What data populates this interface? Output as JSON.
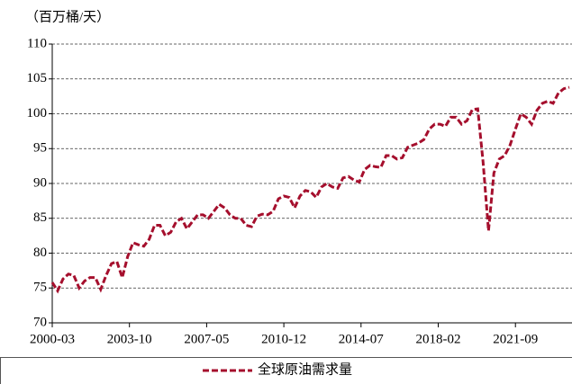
{
  "chart_data": {
    "type": "line",
    "y_label": "（百万桶/天）",
    "x": [
      "2000-03",
      "2000-06",
      "2000-09",
      "2000-12",
      "2001-03",
      "2001-06",
      "2001-09",
      "2001-12",
      "2002-03",
      "2002-06",
      "2002-09",
      "2002-12",
      "2003-03",
      "2003-06",
      "2003-09",
      "2003-12",
      "2004-03",
      "2004-06",
      "2004-09",
      "2004-12",
      "2005-03",
      "2005-06",
      "2005-09",
      "2005-12",
      "2006-03",
      "2006-06",
      "2006-09",
      "2006-12",
      "2007-03",
      "2007-06",
      "2007-09",
      "2007-12",
      "2008-03",
      "2008-06",
      "2008-09",
      "2008-12",
      "2009-03",
      "2009-06",
      "2009-09",
      "2009-12",
      "2010-03",
      "2010-06",
      "2010-09",
      "2010-12",
      "2011-03",
      "2011-06",
      "2011-09",
      "2011-12",
      "2012-03",
      "2012-06",
      "2012-09",
      "2012-12",
      "2013-03",
      "2013-06",
      "2013-09",
      "2013-12",
      "2014-03",
      "2014-06",
      "2014-09",
      "2014-12",
      "2015-03",
      "2015-06",
      "2015-09",
      "2015-12",
      "2016-03",
      "2016-06",
      "2016-09",
      "2016-12",
      "2017-03",
      "2017-06",
      "2017-09",
      "2017-12",
      "2018-03",
      "2018-06",
      "2018-09",
      "2018-12",
      "2019-03",
      "2019-06",
      "2019-09",
      "2019-12",
      "2020-03",
      "2020-06",
      "2020-09",
      "2020-12",
      "2021-03",
      "2021-06",
      "2021-09",
      "2021-12",
      "2022-03",
      "2022-06",
      "2022-09",
      "2022-12",
      "2023-03",
      "2023-06",
      "2023-09",
      "2023-12",
      "2024-03"
    ],
    "series": [
      {
        "name": "全球原油需求量",
        "color": "#a50f2d",
        "values": [
          75.8,
          74.6,
          76.3,
          77.0,
          76.8,
          75.0,
          76.0,
          76.5,
          76.5,
          74.8,
          76.8,
          78.5,
          78.8,
          76.5,
          79.5,
          81.5,
          81.2,
          81.0,
          82.0,
          84.0,
          84.0,
          82.5,
          83.0,
          84.5,
          85.0,
          83.5,
          84.5,
          85.5,
          85.5,
          85.0,
          86.0,
          87.0,
          86.5,
          85.5,
          85.0,
          85.0,
          84.0,
          83.8,
          85.3,
          85.6,
          85.5,
          86.0,
          87.8,
          88.2,
          88.0,
          86.5,
          88.2,
          89.0,
          88.8,
          88.0,
          89.5,
          90.0,
          89.5,
          89.3,
          90.8,
          91.0,
          90.5,
          90.2,
          92.0,
          92.6,
          92.4,
          92.3,
          94.0,
          94.0,
          93.5,
          93.7,
          95.2,
          95.5,
          95.8,
          96.3,
          97.8,
          98.5,
          98.5,
          98.2,
          99.5,
          99.5,
          98.5,
          99.0,
          100.6,
          100.7,
          93.0,
          83.2,
          91.5,
          93.5,
          94.0,
          95.5,
          97.8,
          100.0,
          99.5,
          98.5,
          100.5,
          101.5,
          101.8,
          101.5,
          103.0,
          103.6,
          103.8
        ]
      }
    ],
    "xlim": [
      "2000-03",
      "2024-03"
    ],
    "xticks": [
      "2000-03",
      "2003-10",
      "2007-05",
      "2010-12",
      "2014-07",
      "2018-02",
      "2021-09"
    ],
    "ylim": [
      70,
      110
    ],
    "yticks": [
      70,
      75,
      80,
      85,
      90,
      95,
      100,
      105,
      110
    ],
    "grid": true,
    "legend": "bottom"
  }
}
